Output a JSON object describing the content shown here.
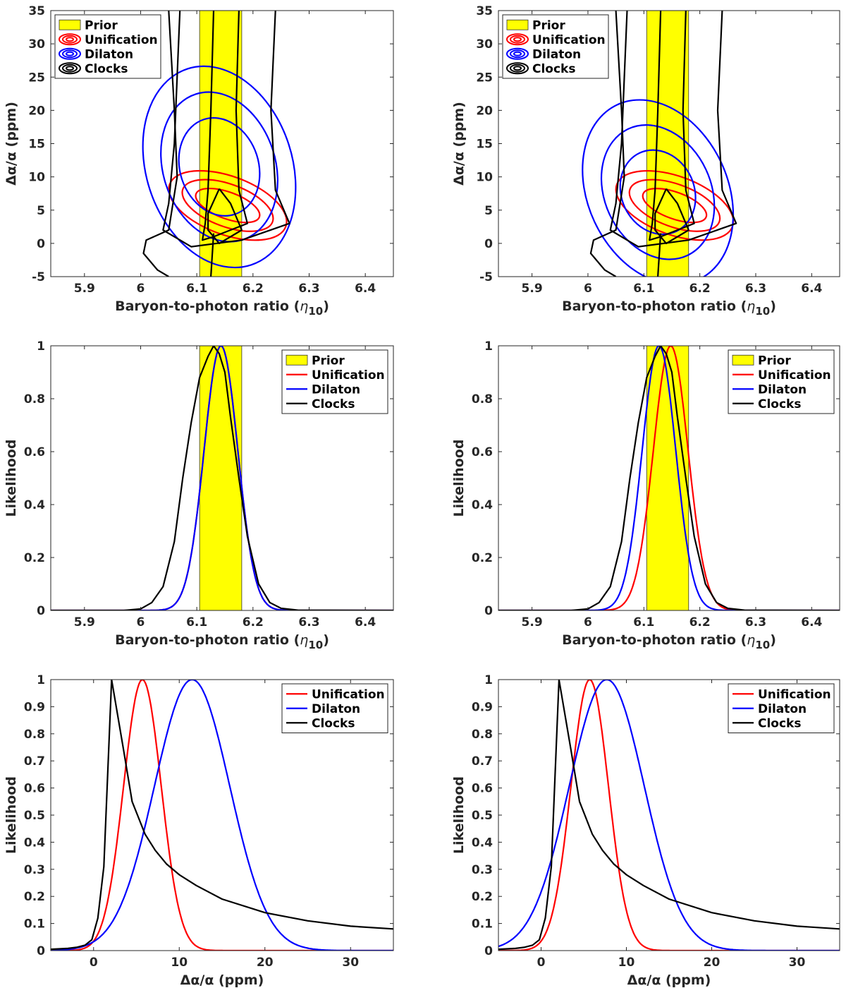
{
  "colors": {
    "prior": "#ffff00",
    "unification": "#ff0000",
    "dilaton": "#0000ff",
    "clocks": "#000000"
  },
  "chart_data": [
    {
      "id": "p1",
      "type": "contour",
      "xlabel": "Baryon-to-photon ratio (",
      "xlabel_sym": "η",
      "xlabel_sub": "10",
      "xlabel_close": ")",
      "ylabel": "Δα/α (ppm)",
      "xlim": [
        5.84,
        6.45
      ],
      "ylim": [
        -5,
        35
      ],
      "xticks": [
        "5.9",
        "6",
        "6.1",
        "6.2",
        "6.3",
        "6.4"
      ],
      "xtick_values": [
        5.9,
        6.0,
        6.1,
        6.2,
        6.3,
        6.4
      ],
      "yticks": [
        "-5",
        "0",
        "5",
        "10",
        "15",
        "20",
        "25",
        "30",
        "35"
      ],
      "ytick_values": [
        -5,
        0,
        5,
        10,
        15,
        20,
        25,
        30,
        35
      ],
      "prior_band": [
        6.105,
        6.18
      ],
      "legend": [
        "Prior",
        "Unification",
        "Dilaton",
        "Clocks"
      ],
      "ellipses": [
        {
          "series": "Unification",
          "cx": 6.155,
          "cy": 5.7,
          "rx": 0.11,
          "ry": 4.4,
          "angle": 20
        },
        {
          "series": "Unification",
          "cx": 6.155,
          "cy": 5.7,
          "rx": 0.085,
          "ry": 3.2,
          "angle": 20
        },
        {
          "series": "Unification",
          "cx": 6.155,
          "cy": 5.7,
          "rx": 0.06,
          "ry": 2.0,
          "angle": 20
        },
        {
          "series": "Dilaton",
          "cx": 6.14,
          "cy": 11.5,
          "rx": 0.13,
          "ry": 15.5,
          "angle": -18
        },
        {
          "series": "Dilaton",
          "cx": 6.14,
          "cy": 11.5,
          "rx": 0.1,
          "ry": 11.5,
          "angle": -18
        },
        {
          "series": "Dilaton",
          "cx": 6.14,
          "cy": 11.5,
          "rx": 0.07,
          "ry": 7.5,
          "angle": -18
        }
      ],
      "clocks_contours": [
        [
          [
            6.02,
            45
          ],
          [
            6.05,
            35
          ],
          [
            6.06,
            20
          ],
          [
            6.065,
            10
          ],
          [
            6.05,
            2
          ],
          [
            6.01,
            0.5
          ],
          [
            6.005,
            -1.5
          ],
          [
            6.03,
            -4
          ],
          [
            6.05,
            -5
          ]
        ],
        [
          [
            6.255,
            45
          ],
          [
            6.24,
            35
          ],
          [
            6.232,
            20
          ],
          [
            6.24,
            8
          ],
          [
            6.265,
            3
          ],
          [
            6.18,
            0.5
          ],
          [
            6.09,
            -0.5
          ],
          [
            6.04,
            2
          ],
          [
            6.05,
            6
          ],
          [
            6.06,
            15
          ],
          [
            6.07,
            35
          ],
          [
            6.08,
            45
          ]
        ],
        [
          [
            6.185,
            45
          ],
          [
            6.175,
            35
          ],
          [
            6.17,
            20
          ],
          [
            6.175,
            8
          ],
          [
            6.19,
            3
          ],
          [
            6.13,
            1
          ],
          [
            6.11,
            0.5
          ],
          [
            6.115,
            3
          ],
          [
            6.12,
            8
          ],
          [
            6.125,
            20
          ],
          [
            6.13,
            35
          ],
          [
            6.133,
            45
          ]
        ],
        [
          [
            6.14,
            8.2
          ],
          [
            6.16,
            6
          ],
          [
            6.18,
            2
          ],
          [
            6.14,
            0
          ],
          [
            6.12,
            2
          ],
          [
            6.12,
            4.5
          ],
          [
            6.14,
            8.2
          ]
        ],
        [
          [
            6.13,
            1.5
          ],
          [
            6.125,
            -5
          ]
        ]
      ]
    },
    {
      "id": "p2",
      "type": "contour",
      "xlabel": "Baryon-to-photon ratio (",
      "xlabel_sym": "η",
      "xlabel_sub": "10",
      "xlabel_close": ")",
      "ylabel": "Δα/α (ppm)",
      "xlim": [
        5.84,
        6.45
      ],
      "ylim": [
        -5,
        35
      ],
      "xticks": [
        "5.9",
        "6",
        "6.1",
        "6.2",
        "6.3",
        "6.4"
      ],
      "xtick_values": [
        5.9,
        6.0,
        6.1,
        6.2,
        6.3,
        6.4
      ],
      "yticks": [
        "-5",
        "0",
        "5",
        "10",
        "15",
        "20",
        "25",
        "30",
        "35"
      ],
      "ytick_values": [
        -5,
        0,
        5,
        10,
        15,
        20,
        25,
        30,
        35
      ],
      "prior_band": [
        6.105,
        6.18
      ],
      "legend": [
        "Prior",
        "Unification",
        "Dilaton",
        "Clocks"
      ],
      "ellipses": [
        {
          "series": "Unification",
          "cx": 6.155,
          "cy": 5.7,
          "rx": 0.11,
          "ry": 4.4,
          "angle": 20
        },
        {
          "series": "Unification",
          "cx": 6.155,
          "cy": 5.7,
          "rx": 0.085,
          "ry": 3.2,
          "angle": 20
        },
        {
          "series": "Unification",
          "cx": 6.155,
          "cy": 5.7,
          "rx": 0.06,
          "ry": 2.0,
          "angle": 20
        },
        {
          "series": "Dilaton",
          "cx": 6.125,
          "cy": 7.7,
          "rx": 0.125,
          "ry": 14.5,
          "angle": -25
        },
        {
          "series": "Dilaton",
          "cx": 6.125,
          "cy": 7.7,
          "rx": 0.095,
          "ry": 10.5,
          "angle": -25
        },
        {
          "series": "Dilaton",
          "cx": 6.125,
          "cy": 7.7,
          "rx": 0.065,
          "ry": 6.5,
          "angle": -25
        }
      ],
      "clocks_contours": [
        [
          [
            6.02,
            45
          ],
          [
            6.05,
            35
          ],
          [
            6.06,
            20
          ],
          [
            6.065,
            10
          ],
          [
            6.05,
            2
          ],
          [
            6.01,
            0.5
          ],
          [
            6.005,
            -1.5
          ],
          [
            6.03,
            -4
          ],
          [
            6.05,
            -5
          ]
        ],
        [
          [
            6.255,
            45
          ],
          [
            6.24,
            35
          ],
          [
            6.232,
            20
          ],
          [
            6.24,
            8
          ],
          [
            6.265,
            3
          ],
          [
            6.18,
            0.5
          ],
          [
            6.09,
            -0.5
          ],
          [
            6.04,
            2
          ],
          [
            6.05,
            6
          ],
          [
            6.06,
            15
          ],
          [
            6.07,
            35
          ],
          [
            6.08,
            45
          ]
        ],
        [
          [
            6.185,
            45
          ],
          [
            6.175,
            35
          ],
          [
            6.17,
            20
          ],
          [
            6.175,
            8
          ],
          [
            6.19,
            3
          ],
          [
            6.13,
            1
          ],
          [
            6.11,
            0.5
          ],
          [
            6.115,
            3
          ],
          [
            6.12,
            8
          ],
          [
            6.125,
            20
          ],
          [
            6.13,
            35
          ],
          [
            6.133,
            45
          ]
        ],
        [
          [
            6.14,
            8.2
          ],
          [
            6.16,
            6
          ],
          [
            6.18,
            2
          ],
          [
            6.14,
            0
          ],
          [
            6.12,
            2
          ],
          [
            6.12,
            4.5
          ],
          [
            6.14,
            8.2
          ]
        ],
        [
          [
            6.13,
            1.5
          ],
          [
            6.125,
            -5
          ]
        ]
      ]
    },
    {
      "id": "p3",
      "type": "line",
      "xlabel": "Baryon-to-photon ratio (",
      "xlabel_sym": "η",
      "xlabel_sub": "10",
      "xlabel_close": ")",
      "ylabel": "Likelihood",
      "xlim": [
        5.84,
        6.45
      ],
      "ylim": [
        0,
        1
      ],
      "xticks": [
        "5.9",
        "6",
        "6.1",
        "6.2",
        "6.3",
        "6.4"
      ],
      "xtick_values": [
        5.9,
        6.0,
        6.1,
        6.2,
        6.3,
        6.4
      ],
      "yticks": [
        "0",
        "0.2",
        "0.4",
        "0.6",
        "0.8",
        "1"
      ],
      "ytick_values": [
        0,
        0.2,
        0.4,
        0.6,
        0.8,
        1
      ],
      "prior_band": [
        6.105,
        6.18
      ],
      "legend": [
        "Prior",
        "Unification",
        "Dilaton",
        "Clocks"
      ],
      "series": [
        {
          "name": "Unification",
          "kind": "gauss",
          "mu": 6.143,
          "sigma": 0.03
        },
        {
          "name": "Dilaton",
          "kind": "gauss",
          "mu": 6.143,
          "sigma": 0.03
        },
        {
          "name": "Clocks",
          "kind": "points",
          "x": [
            5.84,
            5.97,
            6.0,
            6.02,
            6.04,
            6.06,
            6.075,
            6.09,
            6.105,
            6.12,
            6.13,
            6.14,
            6.15,
            6.16,
            6.175,
            6.19,
            6.21,
            6.23,
            6.25,
            6.28,
            6.45
          ],
          "y": [
            0,
            0,
            0.006,
            0.03,
            0.09,
            0.26,
            0.5,
            0.71,
            0.88,
            0.96,
            1.0,
            0.97,
            0.9,
            0.73,
            0.5,
            0.28,
            0.1,
            0.03,
            0.008,
            0.001,
            0
          ]
        }
      ]
    },
    {
      "id": "p4",
      "type": "line",
      "xlabel": "Baryon-to-photon ratio (",
      "xlabel_sym": "η",
      "xlabel_sub": "10",
      "xlabel_close": ")",
      "ylabel": "Likelihood",
      "xlim": [
        5.84,
        6.45
      ],
      "ylim": [
        0,
        1
      ],
      "xticks": [
        "5.9",
        "6",
        "6.1",
        "6.2",
        "6.3",
        "6.4"
      ],
      "xtick_values": [
        5.9,
        6.0,
        6.1,
        6.2,
        6.3,
        6.4
      ],
      "yticks": [
        "0",
        "0.2",
        "0.4",
        "0.6",
        "0.8",
        "1"
      ],
      "ytick_values": [
        0,
        0.2,
        0.4,
        0.6,
        0.8,
        1
      ],
      "prior_band": [
        6.105,
        6.18
      ],
      "legend": [
        "Prior",
        "Unification",
        "Dilaton",
        "Clocks"
      ],
      "series": [
        {
          "name": "Unification",
          "kind": "gauss",
          "mu": 6.148,
          "sigma": 0.031
        },
        {
          "name": "Dilaton",
          "kind": "gauss",
          "mu": 6.127,
          "sigma": 0.03
        },
        {
          "name": "Clocks",
          "kind": "points",
          "x": [
            5.84,
            5.97,
            6.0,
            6.02,
            6.04,
            6.06,
            6.075,
            6.09,
            6.105,
            6.12,
            6.13,
            6.14,
            6.15,
            6.16,
            6.175,
            6.19,
            6.21,
            6.23,
            6.25,
            6.28,
            6.45
          ],
          "y": [
            0,
            0,
            0.006,
            0.03,
            0.09,
            0.26,
            0.5,
            0.71,
            0.88,
            0.96,
            1.0,
            0.97,
            0.9,
            0.73,
            0.5,
            0.28,
            0.1,
            0.03,
            0.008,
            0.001,
            0
          ]
        }
      ]
    },
    {
      "id": "p5",
      "type": "line",
      "xlabel": "Δα/α (ppm)",
      "ylabel": "Likelihood",
      "xlim": [
        -5,
        35
      ],
      "ylim": [
        0,
        1
      ],
      "xticks": [
        "0",
        "10",
        "20",
        "30"
      ],
      "xtick_values": [
        0,
        10,
        20,
        30
      ],
      "yticks": [
        "0",
        "0.1",
        "0.2",
        "0.3",
        "0.4",
        "0.5",
        "0.6",
        "0.7",
        "0.8",
        "0.9",
        "1"
      ],
      "ytick_values": [
        0,
        0.1,
        0.2,
        0.3,
        0.4,
        0.5,
        0.6,
        0.7,
        0.8,
        0.9,
        1
      ],
      "prior_band": null,
      "legend": [
        "Unification",
        "Dilaton",
        "Clocks"
      ],
      "series": [
        {
          "name": "Unification",
          "kind": "gauss",
          "mu": 5.7,
          "sigma": 2.2
        },
        {
          "name": "Dilaton",
          "kind": "gauss",
          "mu": 11.5,
          "sigma": 4.4
        },
        {
          "name": "Clocks",
          "kind": "points",
          "x": [
            -5,
            -3,
            -2,
            -1,
            -0.2,
            0.5,
            1.2,
            2.1,
            3.5,
            4.5,
            6.0,
            7.2,
            8.5,
            10,
            12,
            15,
            20,
            25,
            30,
            35
          ],
          "y": [
            0.005,
            0.008,
            0.012,
            0.02,
            0.04,
            0.12,
            0.31,
            1.0,
            0.74,
            0.55,
            0.43,
            0.37,
            0.32,
            0.28,
            0.24,
            0.19,
            0.14,
            0.11,
            0.09,
            0.08
          ]
        }
      ]
    },
    {
      "id": "p6",
      "type": "line",
      "xlabel": "Δα/α (ppm)",
      "ylabel": "Likelihood",
      "xlim": [
        -5,
        35
      ],
      "ylim": [
        0,
        1
      ],
      "xticks": [
        "0",
        "10",
        "20",
        "30"
      ],
      "xtick_values": [
        0,
        10,
        20,
        30
      ],
      "yticks": [
        "0",
        "0.1",
        "0.2",
        "0.3",
        "0.4",
        "0.5",
        "0.6",
        "0.7",
        "0.8",
        "0.9",
        "1"
      ],
      "ytick_values": [
        0,
        0.1,
        0.2,
        0.3,
        0.4,
        0.5,
        0.6,
        0.7,
        0.8,
        0.9,
        1
      ],
      "prior_band": null,
      "legend": [
        "Unification",
        "Dilaton",
        "Clocks"
      ],
      "series": [
        {
          "name": "Unification",
          "kind": "gauss",
          "mu": 5.7,
          "sigma": 2.2
        },
        {
          "name": "Dilaton",
          "kind": "gauss",
          "mu": 7.7,
          "sigma": 4.4
        },
        {
          "name": "Clocks",
          "kind": "points",
          "x": [
            -5,
            -3,
            -2,
            -1,
            -0.2,
            0.5,
            1.2,
            2.1,
            3.5,
            4.5,
            6.0,
            7.2,
            8.5,
            10,
            12,
            15,
            20,
            25,
            30,
            35
          ],
          "y": [
            0.005,
            0.008,
            0.012,
            0.02,
            0.04,
            0.12,
            0.31,
            1.0,
            0.74,
            0.55,
            0.43,
            0.37,
            0.32,
            0.28,
            0.24,
            0.19,
            0.14,
            0.11,
            0.09,
            0.08
          ]
        }
      ]
    }
  ]
}
